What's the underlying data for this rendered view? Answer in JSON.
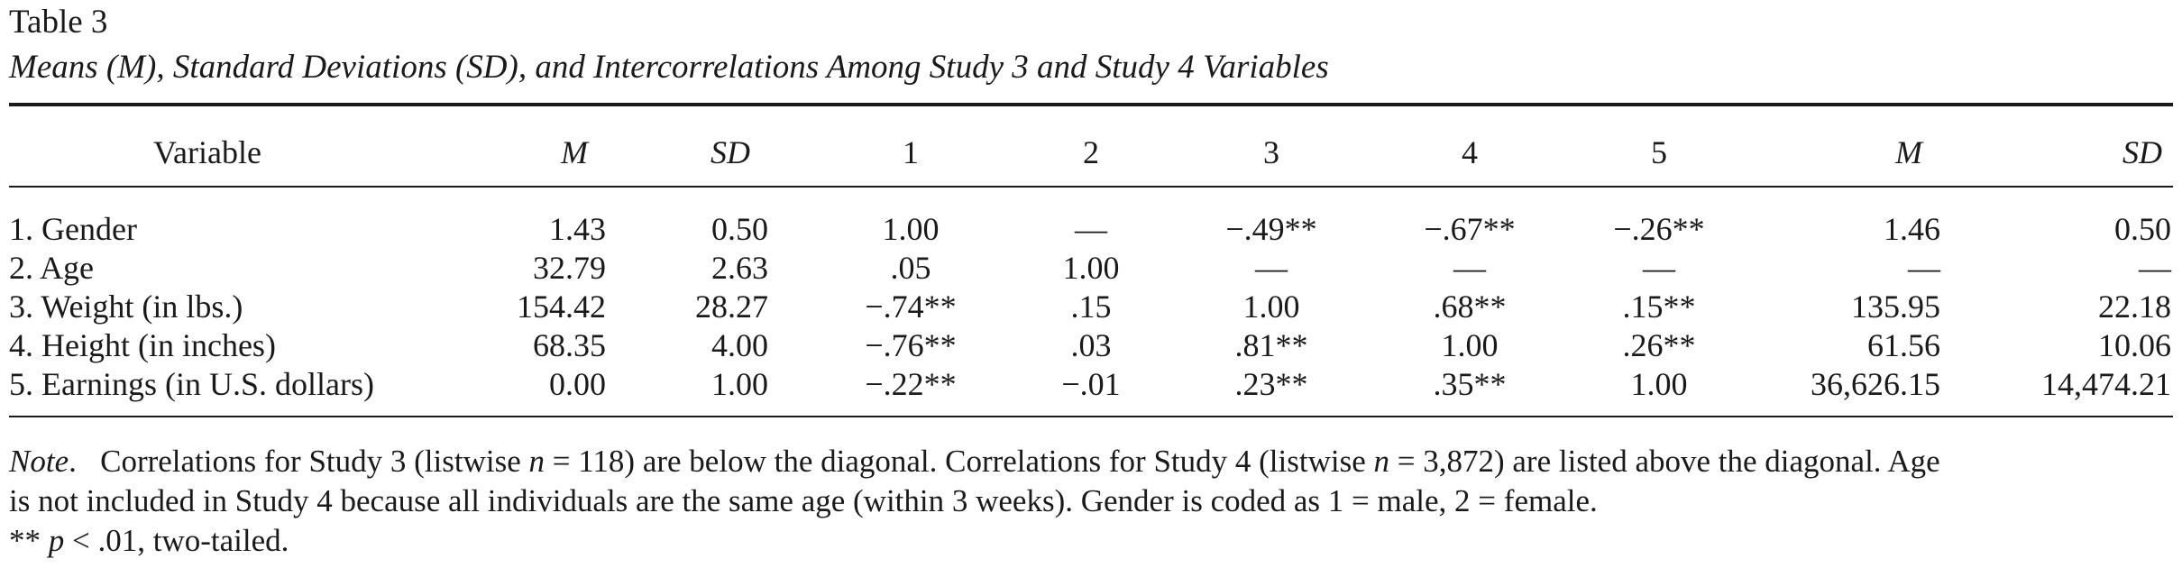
{
  "table": {
    "label": "Table 3",
    "title": "Means (M), Standard Deviations (SD), and Intercorrelations Among Study 3 and Study 4 Variables",
    "headers": {
      "variable": "Variable",
      "m1": "M",
      "sd1": "SD",
      "r1": "1",
      "r2": "2",
      "r3": "3",
      "r4": "4",
      "r5": "5",
      "m2": "M",
      "sd2": "SD"
    },
    "rows": [
      {
        "variable": "1. Gender",
        "m1": "1.43",
        "sd1": "0.50",
        "r1": "1.00",
        "r2": "—",
        "r3": "−.49**",
        "r4": "−.67**",
        "r5": "−.26**",
        "m2": "1.46",
        "sd2": "0.50"
      },
      {
        "variable": "2. Age",
        "m1": "32.79",
        "sd1": "2.63",
        "r1": ".05",
        "r2": "1.00",
        "r3": "—",
        "r4": "—",
        "r5": "—",
        "m2": "—",
        "sd2": "—"
      },
      {
        "variable": "3. Weight (in lbs.)",
        "m1": "154.42",
        "sd1": "28.27",
        "r1": "−.74**",
        "r2": ".15",
        "r3": "1.00",
        "r4": ".68**",
        "r5": ".15**",
        "m2": "135.95",
        "sd2": "22.18"
      },
      {
        "variable": "4. Height (in inches)",
        "m1": "68.35",
        "sd1": "4.00",
        "r1": "−.76**",
        "r2": ".03",
        "r3": ".81**",
        "r4": "1.00",
        "r5": ".26**",
        "m2": "61.56",
        "sd2": "10.06"
      },
      {
        "variable": "5. Earnings (in U.S. dollars)",
        "m1": "0.00",
        "sd1": "1.00",
        "r1": "−.22**",
        "r2": "−.01",
        "r3": ".23**",
        "r4": ".35**",
        "r5": "1.00",
        "m2": "36,626.15",
        "sd2": "14,474.21"
      }
    ]
  },
  "note": {
    "lead": "Note",
    "line1_a": "Correlations for Study 3 (listwise ",
    "n_symbol": "n",
    "line1_b": " = 118) are below the diagonal. Correlations for Study 4 (listwise ",
    "line1_c": " = 3,872) are listed above the diagonal. Age",
    "line2": "is not included in Study 4 because all individuals are the same age (within 3 weeks). Gender is coded as 1 = male, 2 = female.",
    "line3_a": "** ",
    "p_symbol": "p",
    "line3_b": " < .01, two-tailed."
  }
}
